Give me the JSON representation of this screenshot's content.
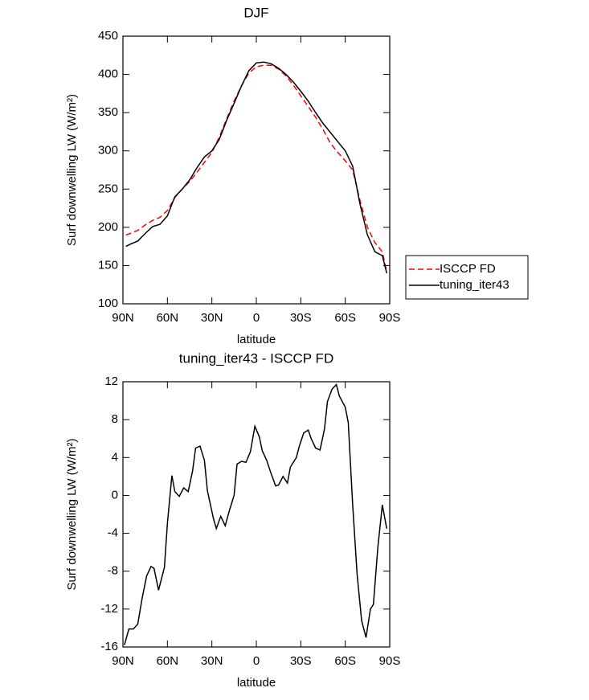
{
  "chart_data": [
    {
      "type": "line",
      "title": "DJF",
      "xlabel": "latitude",
      "ylabel": "Surf downwelling LW (W/m²)",
      "x": [
        88,
        85,
        80,
        75,
        70,
        65,
        60,
        55,
        50,
        45,
        40,
        35,
        30,
        25,
        20,
        15,
        10,
        5,
        0,
        -5,
        -10,
        -15,
        -20,
        -25,
        -30,
        -35,
        -40,
        -45,
        -50,
        -55,
        -60,
        -65,
        -70,
        -75,
        -80,
        -85,
        -88
      ],
      "series": [
        {
          "name": "ISCCP FD",
          "color": "#ff0000",
          "line_style": "dashed",
          "values": [
            190,
            192,
            196,
            203,
            209,
            213,
            222,
            239,
            250,
            260,
            272,
            285,
            298,
            318,
            342,
            365,
            385,
            402,
            410,
            412,
            412,
            407,
            398,
            386,
            372,
            358,
            344,
            328,
            310,
            298,
            287,
            275,
            235,
            200,
            180,
            168,
            142
          ]
        },
        {
          "name": "tuning_iter43",
          "color": "#000000",
          "line_style": "solid",
          "values": [
            175,
            178,
            182,
            192,
            201,
            204,
            215,
            240,
            250,
            262,
            278,
            292,
            300,
            315,
            340,
            362,
            385,
            405,
            415,
            416,
            414,
            408,
            400,
            390,
            378,
            365,
            350,
            336,
            324,
            312,
            300,
            280,
            230,
            190,
            168,
            163,
            140
          ]
        }
      ],
      "xlim": [
        90,
        -90
      ],
      "xticks": [
        {
          "value": 90,
          "label": "90N"
        },
        {
          "value": 60,
          "label": "60N"
        },
        {
          "value": 30,
          "label": "30N"
        },
        0,
        {
          "value": -30,
          "label": "30S"
        },
        {
          "value": -60,
          "label": "60S"
        },
        {
          "value": -90,
          "label": "90S"
        }
      ],
      "ylim": [
        100,
        450
      ],
      "yticks": [
        100,
        150,
        200,
        250,
        300,
        350,
        400,
        450
      ],
      "legend": "right"
    },
    {
      "type": "line",
      "title": "tuning_iter43 - ISCCP FD",
      "xlabel": "latitude",
      "ylabel": "Surf downwelling LW (W/m²)",
      "x": [
        89,
        86,
        83,
        80,
        77,
        74,
        71,
        69,
        66,
        62,
        60,
        57,
        55,
        52,
        49,
        46,
        43,
        41,
        38,
        35,
        33,
        29,
        27,
        24,
        21,
        18,
        15,
        13,
        10,
        7,
        4,
        1,
        -2,
        -4,
        -7,
        -10,
        -13,
        -15,
        -18,
        -21,
        -23,
        -27,
        -29,
        -32,
        -35,
        -37,
        -40,
        -43,
        -46,
        -48,
        -51,
        -54,
        -56,
        -60,
        -62,
        -65,
        -68,
        -71,
        -74,
        -77,
        -79,
        -82,
        -85,
        -88
      ],
      "color": "#000000",
      "values": [
        -15.8,
        -14.1,
        -14.1,
        -13.6,
        -10.8,
        -8.5,
        -7.5,
        -7.7,
        -10,
        -7.6,
        -3,
        2.1,
        0.4,
        -0.1,
        0.8,
        0.4,
        2.6,
        5,
        5.2,
        3.7,
        0.5,
        -2.4,
        -3.5,
        -2.2,
        -3.2,
        -1.5,
        0,
        3.3,
        3.6,
        3.5,
        4.6,
        7.3,
        6.2,
        4.7,
        3.7,
        2.3,
        1,
        1.1,
        2,
        1.3,
        3,
        4,
        5.2,
        6.6,
        6.9,
        6,
        5,
        4.8,
        7,
        9.9,
        11.2,
        11.7,
        10.5,
        9.3,
        7.7,
        -1,
        -8.3,
        -13.2,
        -15,
        -12,
        -11.5,
        -5.5,
        -1,
        -3.5
      ],
      "xlim": [
        90,
        -90
      ],
      "xticks": [
        {
          "value": 90,
          "label": "90N"
        },
        {
          "value": 60,
          "label": "60N"
        },
        {
          "value": 30,
          "label": "30N"
        },
        0,
        {
          "value": -30,
          "label": "30S"
        },
        {
          "value": -60,
          "label": "60S"
        },
        {
          "value": -90,
          "label": "90S"
        }
      ],
      "ylim": [
        -16,
        12
      ],
      "yticks": [
        -16,
        -12,
        -8,
        -4,
        0,
        4,
        8,
        12
      ]
    }
  ]
}
